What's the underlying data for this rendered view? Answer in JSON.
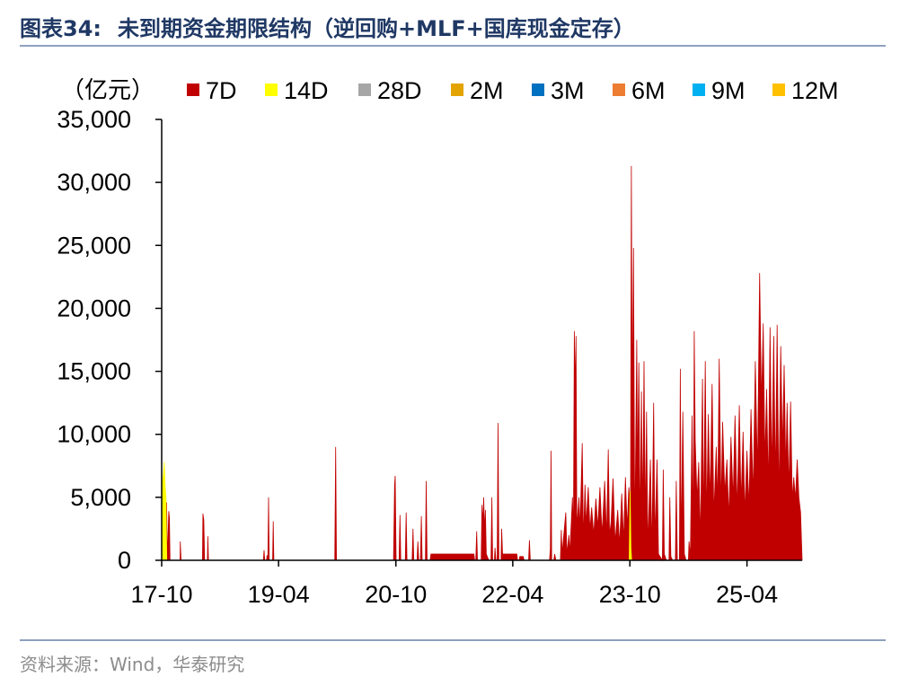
{
  "header": {
    "figure_label": "图表34:",
    "title": "未到期资金期限结构（逆回购+MLF+国库现金定存）"
  },
  "footer": {
    "source": "资料来源：Wind，华泰研究"
  },
  "colors": {
    "title": "#1f3864",
    "rule": "#8ea1bf",
    "source_text": "#8c8c8c"
  },
  "chart_data": {
    "type": "area",
    "stacked": true,
    "unit_label": "（亿元）",
    "title": "",
    "xlabel": "",
    "ylabel": "",
    "ylim": [
      0,
      35000
    ],
    "y_ticks": [
      0,
      5000,
      10000,
      15000,
      20000,
      25000,
      30000,
      35000
    ],
    "y_tick_labels": [
      "0",
      "5,000",
      "10,000",
      "15,000",
      "20,000",
      "25,000",
      "30,000",
      "35,000"
    ],
    "x_ticks": [
      "2017-10",
      "2019-04",
      "2020-10",
      "2022-04",
      "2023-10",
      "2025-04"
    ],
    "x_tick_labels": [
      "17-10",
      "19-04",
      "20-10",
      "22-04",
      "23-10",
      "25-04"
    ],
    "x_range": [
      "2017-10-01",
      "2025-12-15"
    ],
    "grid": false,
    "legend_position": "top",
    "series": [
      {
        "name": "7D",
        "color": "#c00000",
        "points": [
          [
            "2017-10-01",
            0
          ],
          [
            "2017-10-05",
            4900
          ],
          [
            "2017-10-09",
            4600
          ],
          [
            "2017-10-12",
            4400
          ],
          [
            "2017-10-16",
            4600
          ],
          [
            "2017-10-20",
            3800
          ],
          [
            "2017-10-24",
            4600
          ],
          [
            "2017-10-28",
            0
          ],
          [
            "2017-11-03",
            3900
          ],
          [
            "2017-11-06",
            3400
          ],
          [
            "2017-11-09",
            0
          ],
          [
            "2017-12-26",
            0
          ],
          [
            "2017-12-27",
            1500
          ],
          [
            "2017-12-31",
            0
          ],
          [
            "2018-04-10",
            0
          ],
          [
            "2018-04-12",
            3700
          ],
          [
            "2018-04-16",
            3200
          ],
          [
            "2018-04-20",
            0
          ],
          [
            "2018-05-03",
            0
          ],
          [
            "2018-05-05",
            1900
          ],
          [
            "2018-05-08",
            0
          ],
          [
            "2019-01-20",
            0
          ],
          [
            "2019-01-23",
            800
          ],
          [
            "2019-01-26",
            0
          ],
          [
            "2019-02-04",
            0
          ],
          [
            "2019-02-06",
            400
          ],
          [
            "2019-02-08",
            0
          ],
          [
            "2019-02-10",
            0
          ],
          [
            "2019-02-13",
            5000
          ],
          [
            "2019-02-16",
            0
          ],
          [
            "2019-03-04",
            0
          ],
          [
            "2019-03-07",
            3100
          ],
          [
            "2019-03-10",
            0
          ],
          [
            "2019-12-20",
            0
          ],
          [
            "2019-12-24",
            9000
          ],
          [
            "2019-12-28",
            0
          ],
          [
            "2020-09-20",
            0
          ],
          [
            "2020-09-25",
            6000
          ],
          [
            "2020-09-28",
            6700
          ],
          [
            "2020-10-02",
            0
          ],
          [
            "2020-10-16",
            0
          ],
          [
            "2020-10-20",
            3600
          ],
          [
            "2020-10-24",
            0
          ],
          [
            "2020-11-14",
            0
          ],
          [
            "2020-11-18",
            3800
          ],
          [
            "2020-11-22",
            0
          ],
          [
            "2020-12-16",
            0
          ],
          [
            "2020-12-20",
            2500
          ],
          [
            "2020-12-24",
            0
          ],
          [
            "2021-01-08",
            0
          ],
          [
            "2021-01-12",
            1500
          ],
          [
            "2021-01-16",
            0
          ],
          [
            "2021-01-24",
            0
          ],
          [
            "2021-01-28",
            3500
          ],
          [
            "2021-02-01",
            0
          ],
          [
            "2021-02-16",
            0
          ],
          [
            "2021-02-20",
            6300
          ],
          [
            "2021-02-24",
            0
          ],
          [
            "2021-03-10",
            0
          ],
          [
            "2021-03-14",
            500
          ],
          [
            "2021-10-01",
            500
          ],
          [
            "2021-10-05",
            0
          ],
          [
            "2021-10-10",
            0
          ],
          [
            "2021-10-14",
            2300
          ],
          [
            "2021-10-18",
            0
          ],
          [
            "2021-11-04",
            0
          ],
          [
            "2021-11-08",
            4400
          ],
          [
            "2021-11-12",
            2900
          ],
          [
            "2021-11-16",
            5000
          ],
          [
            "2021-11-20",
            2200
          ],
          [
            "2021-11-24",
            4000
          ],
          [
            "2021-11-28",
            500
          ],
          [
            "2021-12-10",
            0
          ],
          [
            "2021-12-20",
            0
          ],
          [
            "2021-12-24",
            5000
          ],
          [
            "2021-12-28",
            0
          ],
          [
            "2022-01-05",
            0
          ],
          [
            "2022-01-08",
            1000
          ],
          [
            "2022-01-12",
            0
          ],
          [
            "2022-01-18",
            0
          ],
          [
            "2022-01-22",
            10900
          ],
          [
            "2022-01-26",
            0
          ],
          [
            "2022-02-05",
            0
          ],
          [
            "2022-02-08",
            2500
          ],
          [
            "2022-02-12",
            500
          ],
          [
            "2022-04-20",
            500
          ],
          [
            "2022-04-24",
            0
          ],
          [
            "2022-05-01",
            0
          ],
          [
            "2022-05-04",
            300
          ],
          [
            "2022-05-20",
            300
          ],
          [
            "2022-05-24",
            0
          ],
          [
            "2022-06-14",
            0
          ],
          [
            "2022-06-18",
            1600
          ],
          [
            "2022-06-22",
            0
          ],
          [
            "2022-09-20",
            0
          ],
          [
            "2022-09-24",
            900
          ],
          [
            "2022-09-27",
            8700
          ],
          [
            "2022-09-30",
            0
          ],
          [
            "2022-10-10",
            0
          ],
          [
            "2022-10-14",
            500
          ],
          [
            "2022-10-20",
            0
          ],
          [
            "2022-11-10",
            0
          ],
          [
            "2022-11-14",
            2400
          ],
          [
            "2022-11-18",
            500
          ],
          [
            "2022-12-05",
            3800
          ],
          [
            "2022-12-10",
            500
          ],
          [
            "2022-12-20",
            2000
          ],
          [
            "2022-12-24",
            500
          ],
          [
            "2023-01-05",
            5000
          ],
          [
            "2023-01-10",
            2000
          ],
          [
            "2023-01-14",
            18200
          ],
          [
            "2023-01-18",
            13500
          ],
          [
            "2023-01-22",
            17800
          ],
          [
            "2023-01-26",
            2600
          ],
          [
            "2023-02-05",
            5000
          ],
          [
            "2023-02-10",
            2400
          ],
          [
            "2023-02-20",
            9300
          ],
          [
            "2023-02-26",
            1500
          ],
          [
            "2023-03-05",
            6000
          ],
          [
            "2023-03-10",
            2800
          ],
          [
            "2023-03-20",
            5800
          ],
          [
            "2023-03-28",
            2400
          ],
          [
            "2023-04-05",
            4200
          ],
          [
            "2023-04-15",
            2000
          ],
          [
            "2023-04-25",
            4900
          ],
          [
            "2023-05-04",
            2600
          ],
          [
            "2023-05-14",
            5800
          ],
          [
            "2023-05-24",
            2000
          ],
          [
            "2023-06-05",
            6300
          ],
          [
            "2023-06-14",
            1800
          ],
          [
            "2023-06-22",
            8800
          ],
          [
            "2023-06-28",
            2000
          ],
          [
            "2023-07-05",
            3000
          ],
          [
            "2023-07-14",
            6500
          ],
          [
            "2023-07-24",
            1400
          ],
          [
            "2023-08-05",
            4000
          ],
          [
            "2023-08-14",
            1200
          ],
          [
            "2023-08-24",
            5300
          ],
          [
            "2023-09-02",
            1500
          ],
          [
            "2023-09-10",
            6600
          ],
          [
            "2023-09-18",
            2500
          ],
          [
            "2023-09-26",
            5800
          ],
          [
            "2023-10-04",
            4000
          ],
          [
            "2023-10-08",
            31300
          ],
          [
            "2023-10-12",
            12000
          ],
          [
            "2023-10-18",
            24800
          ],
          [
            "2023-10-24",
            1500
          ],
          [
            "2023-11-02",
            17500
          ],
          [
            "2023-11-06",
            6200
          ],
          [
            "2023-11-12",
            15700
          ],
          [
            "2023-11-18",
            2000
          ],
          [
            "2023-11-24",
            13400
          ],
          [
            "2023-11-30",
            3300
          ],
          [
            "2023-12-06",
            15800
          ],
          [
            "2023-12-12",
            2500
          ],
          [
            "2023-12-18",
            11800
          ],
          [
            "2023-12-24",
            1000
          ],
          [
            "2024-01-05",
            8000
          ],
          [
            "2024-01-12",
            500
          ],
          [
            "2024-01-20",
            12500
          ],
          [
            "2024-01-26",
            1500
          ],
          [
            "2024-02-05",
            8000
          ],
          [
            "2024-02-12",
            500
          ],
          [
            "2024-03-01",
            0
          ],
          [
            "2024-03-05",
            7200
          ],
          [
            "2024-03-10",
            500
          ],
          [
            "2024-03-20",
            0
          ],
          [
            "2024-04-01",
            0
          ],
          [
            "2024-04-05",
            5000
          ],
          [
            "2024-04-10",
            300
          ],
          [
            "2024-04-18",
            0
          ],
          [
            "2024-05-01",
            0
          ],
          [
            "2024-05-05",
            6300
          ],
          [
            "2024-05-10",
            0
          ],
          [
            "2024-05-20",
            0
          ],
          [
            "2024-05-24",
            15200
          ],
          [
            "2024-05-28",
            500
          ],
          [
            "2024-06-05",
            11800
          ],
          [
            "2024-06-12",
            500
          ],
          [
            "2024-06-20",
            0
          ],
          [
            "2024-07-01",
            0
          ],
          [
            "2024-07-04",
            1500
          ],
          [
            "2024-07-10",
            300
          ],
          [
            "2024-07-18",
            11500
          ],
          [
            "2024-07-24",
            1500
          ],
          [
            "2024-07-28",
            18200
          ],
          [
            "2024-08-02",
            9600
          ],
          [
            "2024-08-10",
            4800
          ],
          [
            "2024-08-18",
            7800
          ],
          [
            "2024-08-26",
            1500
          ],
          [
            "2024-09-05",
            14400
          ],
          [
            "2024-09-10",
            2500
          ],
          [
            "2024-09-18",
            15800
          ],
          [
            "2024-09-24",
            3000
          ],
          [
            "2024-10-02",
            11600
          ],
          [
            "2024-10-10",
            4500
          ],
          [
            "2024-10-20",
            14000
          ],
          [
            "2024-10-28",
            3500
          ],
          [
            "2024-11-08",
            9000
          ],
          [
            "2024-11-15",
            4300
          ],
          [
            "2024-11-22",
            16000
          ],
          [
            "2024-12-01",
            4000
          ],
          [
            "2024-12-08",
            11000
          ],
          [
            "2024-12-18",
            5300
          ],
          [
            "2024-12-28",
            8000
          ],
          [
            "2025-01-06",
            3300
          ],
          [
            "2025-01-16",
            9800
          ],
          [
            "2025-01-26",
            4800
          ],
          [
            "2025-02-04",
            11500
          ],
          [
            "2025-02-14",
            3900
          ],
          [
            "2025-02-24",
            12300
          ],
          [
            "2025-03-04",
            4500
          ],
          [
            "2025-03-14",
            10200
          ],
          [
            "2025-03-22",
            3700
          ],
          [
            "2025-04-01",
            8700
          ],
          [
            "2025-04-10",
            4200
          ],
          [
            "2025-04-20",
            12000
          ],
          [
            "2025-04-30",
            5000
          ],
          [
            "2025-05-10",
            15800
          ],
          [
            "2025-05-20",
            6800
          ],
          [
            "2025-05-30",
            22800
          ],
          [
            "2025-06-08",
            12300
          ],
          [
            "2025-06-16",
            18800
          ],
          [
            "2025-06-24",
            7800
          ],
          [
            "2025-07-02",
            13600
          ],
          [
            "2025-07-10",
            5500
          ],
          [
            "2025-07-18",
            18500
          ],
          [
            "2025-07-26",
            6700
          ],
          [
            "2025-08-04",
            17800
          ],
          [
            "2025-08-12",
            6000
          ],
          [
            "2025-08-20",
            18700
          ],
          [
            "2025-08-28",
            4500
          ],
          [
            "2025-09-06",
            17000
          ],
          [
            "2025-09-14",
            8700
          ],
          [
            "2025-09-22",
            15500
          ],
          [
            "2025-09-30",
            7000
          ],
          [
            "2025-10-06",
            12500
          ],
          [
            "2025-10-14",
            5500
          ],
          [
            "2025-10-22",
            12600
          ],
          [
            "2025-10-30",
            4700
          ],
          [
            "2025-11-06",
            6600
          ],
          [
            "2025-11-14",
            4800
          ],
          [
            "2025-11-22",
            8000
          ],
          [
            "2025-11-30",
            5000
          ],
          [
            "2025-12-08",
            3800
          ],
          [
            "2025-12-15",
            0
          ]
        ]
      },
      {
        "name": "14D",
        "color": "#ffff00",
        "points": [
          [
            "2017-10-01",
            0
          ],
          [
            "2017-10-03",
            6000
          ],
          [
            "2017-10-09",
            6800
          ],
          [
            "2017-10-13",
            7800
          ],
          [
            "2017-10-17",
            6000
          ],
          [
            "2017-10-21",
            5000
          ],
          [
            "2017-10-25",
            0
          ],
          [
            "2023-09-28",
            0
          ],
          [
            "2023-10-02",
            5500
          ],
          [
            "2023-10-06",
            1000
          ],
          [
            "2023-10-09",
            0
          ]
        ]
      },
      {
        "name": "28D",
        "color": "#a6a6a6",
        "points": []
      },
      {
        "name": "2M",
        "color": "#e3a400",
        "points": []
      },
      {
        "name": "3M",
        "color": "#0070c0",
        "points": []
      },
      {
        "name": "6M",
        "color": "#ed7d31",
        "points": []
      },
      {
        "name": "9M",
        "color": "#00b0f0",
        "points": []
      },
      {
        "name": "12M",
        "color": "#ffc000",
        "points": []
      }
    ]
  }
}
